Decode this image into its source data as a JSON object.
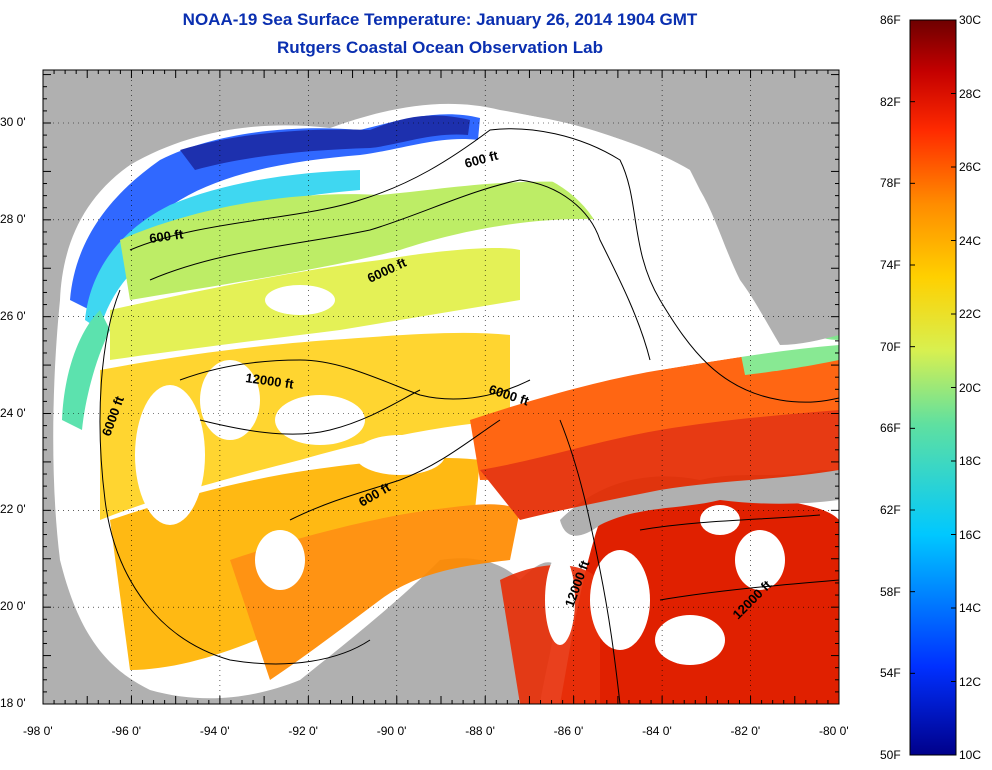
{
  "title": {
    "line1": "NOAA-19 Sea Surface Temperature:  January 26, 2014 1904 GMT",
    "line2": "Rutgers Coastal Ocean Observation Lab"
  },
  "map": {
    "x_ticks": [
      "-98 0'",
      "-96 0'",
      "-94 0'",
      "-92 0'",
      "-90 0'",
      "-88 0'",
      "-86 0'",
      "-84 0'",
      "-82 0'",
      "-80 0'"
    ],
    "y_ticks": [
      "30 0'",
      "28 0'",
      "26 0'",
      "24 0'",
      "22 0'",
      "20 0'",
      "18 0'"
    ],
    "contour_labels": [
      {
        "id": "c1",
        "text": "600 ft"
      },
      {
        "id": "c2",
        "text": "600 ft"
      },
      {
        "id": "c3",
        "text": "6000 ft"
      },
      {
        "id": "c4",
        "text": "12000 ft"
      },
      {
        "id": "c5",
        "text": "6000 ft"
      },
      {
        "id": "c6",
        "text": "6000 ft"
      },
      {
        "id": "c7",
        "text": "600 ft"
      },
      {
        "id": "c8",
        "text": "12000 ft"
      },
      {
        "id": "c9",
        "text": "12000 ft"
      }
    ],
    "colors": {
      "land": "#b0b0b0",
      "cloud": "#ffffff"
    }
  },
  "colorbar": {
    "fahrenheit": [
      "86F",
      "82F",
      "78F",
      "74F",
      "70F",
      "66F",
      "62F",
      "58F",
      "54F",
      "50F"
    ],
    "celsius": [
      "30C",
      "28C",
      "26C",
      "24C",
      "22C",
      "20C",
      "18C",
      "16C",
      "14C",
      "12C",
      "10C"
    ]
  }
}
